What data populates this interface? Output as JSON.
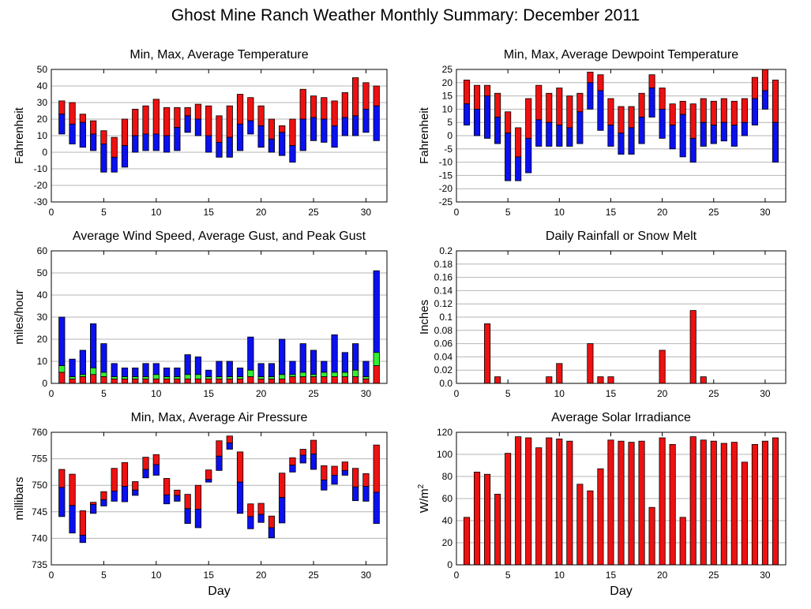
{
  "page": {
    "title": "Ghost Mine Ranch Weather Monthly Summary: December 2011"
  },
  "colors": {
    "red": "#ee1111",
    "blue": "#0a10ee",
    "green": "#33ee33",
    "grid": "#b4b4b4"
  },
  "chart_data": [
    {
      "id": "temp",
      "type": "bar",
      "style": "minmax-avg",
      "title": "Min, Max, Average Temperature",
      "xlabel": "",
      "ylabel": "Fahrenheit",
      "xlim": [
        0,
        32
      ],
      "xticks": [
        0,
        5,
        10,
        15,
        20,
        25,
        30
      ],
      "ylim": [
        -30,
        50
      ],
      "yticks": [
        -30,
        -20,
        -10,
        0,
        10,
        20,
        30,
        40,
        50
      ],
      "days": [
        1,
        2,
        3,
        4,
        5,
        6,
        7,
        8,
        9,
        10,
        11,
        12,
        13,
        14,
        15,
        16,
        17,
        18,
        19,
        20,
        21,
        22,
        23,
        24,
        25,
        26,
        27,
        28,
        29,
        30,
        31
      ],
      "min": [
        11,
        5,
        3,
        1,
        -12,
        -12,
        -9,
        0,
        1,
        1,
        0,
        1,
        12,
        10,
        0,
        -3,
        -3,
        1,
        11,
        3,
        0,
        -2,
        -6,
        1,
        7,
        6,
        3,
        10,
        10,
        12,
        7
      ],
      "avg": [
        23,
        17,
        18,
        11,
        5,
        -3,
        4,
        10,
        11,
        11,
        10,
        15,
        22,
        20,
        10,
        6,
        9,
        17,
        19,
        16,
        8,
        12,
        4,
        20,
        21,
        20,
        16,
        21,
        22,
        26,
        28
      ],
      "max": [
        31,
        30,
        23,
        19,
        13,
        9,
        20,
        26,
        28,
        32,
        27,
        27,
        27,
        29,
        28,
        22,
        28,
        35,
        33,
        28,
        20,
        16,
        20,
        38,
        34,
        33,
        31,
        36,
        45,
        42,
        40
      ]
    },
    {
      "id": "dewpoint",
      "type": "bar",
      "style": "minmax-avg",
      "title": "Min, Max, Average Dewpoint Temperature",
      "xlabel": "",
      "ylabel": "Fahrenheit",
      "xlim": [
        0,
        32
      ],
      "xticks": [
        0,
        5,
        10,
        15,
        20,
        25,
        30
      ],
      "ylim": [
        -25,
        25
      ],
      "yticks": [
        -25,
        -20,
        -15,
        -10,
        -5,
        0,
        5,
        10,
        15,
        20,
        25
      ],
      "days": [
        1,
        2,
        3,
        4,
        5,
        6,
        7,
        8,
        9,
        10,
        11,
        12,
        13,
        14,
        15,
        16,
        17,
        18,
        19,
        20,
        21,
        22,
        23,
        24,
        25,
        26,
        27,
        28,
        29,
        30,
        31
      ],
      "min": [
        4,
        0,
        -1,
        -3,
        -17,
        -17,
        -14,
        -4,
        -4,
        -4,
        -4,
        -3,
        10,
        2,
        -4,
        -7,
        -7,
        -3,
        7,
        -1,
        -5,
        -8,
        -10,
        -4,
        -3,
        -2,
        -4,
        0,
        4,
        10,
        -10
      ],
      "avg": [
        12,
        10,
        15,
        7,
        1,
        -8,
        -1,
        6,
        5,
        4,
        3,
        9,
        20,
        17,
        4,
        1,
        3,
        7,
        18,
        10,
        4,
        8,
        -1,
        5,
        4,
        5,
        4,
        5,
        14,
        17,
        5
      ],
      "max": [
        21,
        19,
        19,
        16,
        9,
        3,
        14,
        19,
        16,
        18,
        15,
        16,
        24,
        23,
        14,
        11,
        11,
        16,
        23,
        18,
        12,
        13,
        12,
        14,
        13,
        14,
        13,
        14,
        22,
        25,
        21
      ]
    },
    {
      "id": "wind",
      "type": "bar",
      "style": "wind",
      "title": "Average Wind Speed, Average Gust, and Peak Gust",
      "xlabel": "",
      "ylabel": "miles/hour",
      "xlim": [
        0,
        32
      ],
      "xticks": [
        0,
        5,
        10,
        15,
        20,
        25,
        30
      ],
      "ylim": [
        0,
        60
      ],
      "yticks": [
        0,
        10,
        20,
        30,
        40,
        50,
        60
      ],
      "days": [
        1,
        2,
        3,
        4,
        5,
        6,
        7,
        8,
        9,
        10,
        11,
        12,
        13,
        14,
        15,
        16,
        17,
        18,
        19,
        20,
        21,
        22,
        23,
        24,
        25,
        26,
        27,
        28,
        29,
        30,
        31
      ],
      "avg_speed": [
        5,
        2,
        3,
        4,
        3,
        2,
        2,
        2,
        2,
        2,
        2,
        2,
        2,
        2,
        2,
        2,
        2,
        2,
        3,
        2,
        2,
        2,
        3,
        3,
        3,
        3,
        3,
        3,
        3,
        2,
        8
      ],
      "avg_gust": [
        8,
        3,
        4,
        7,
        5,
        3,
        3,
        3,
        3,
        4,
        3,
        3,
        4,
        4,
        3,
        3,
        3,
        3,
        6,
        3,
        3,
        4,
        4,
        5,
        4,
        5,
        5,
        5,
        6,
        3,
        14
      ],
      "peak_gust": [
        30,
        11,
        15,
        27,
        18,
        9,
        7,
        7,
        9,
        9,
        7,
        7,
        13,
        12,
        6,
        10,
        10,
        7,
        21,
        9,
        9,
        20,
        10,
        18,
        15,
        10,
        22,
        14,
        18,
        10,
        51
      ]
    },
    {
      "id": "rain",
      "type": "bar",
      "style": "single",
      "title": "Daily Rainfall or Snow Melt",
      "xlabel": "",
      "ylabel": "Inches",
      "xlim": [
        0,
        32
      ],
      "xticks": [
        0,
        5,
        10,
        15,
        20,
        25,
        30
      ],
      "ylim": [
        0,
        0.2
      ],
      "yticks": [
        0,
        0.02,
        0.04,
        0.06,
        0.08,
        0.1,
        0.12,
        0.14,
        0.16,
        0.18,
        0.2
      ],
      "ytick_labels": [
        "0.0",
        "0.02",
        "0.04",
        "0.06",
        "0.08",
        "0.1",
        "0.12",
        "0.14",
        "0.16",
        "0.18",
        "0.2"
      ],
      "days": [
        3,
        4,
        9,
        10,
        13,
        14,
        15,
        20,
        23,
        24
      ],
      "values": [
        0.09,
        0.01,
        0.01,
        0.03,
        0.06,
        0.01,
        0.01,
        0.05,
        0.11,
        0.01
      ]
    },
    {
      "id": "pressure",
      "type": "bar",
      "style": "minmax-avg",
      "title": "Min, Max, Average Air Pressure",
      "xlabel": "Day",
      "ylabel": "millibars",
      "xlim": [
        0,
        32
      ],
      "xticks": [
        0,
        5,
        10,
        15,
        20,
        25,
        30
      ],
      "ylim": [
        735,
        760
      ],
      "yticks": [
        735,
        740,
        745,
        750,
        755,
        760
      ],
      "days": [
        1,
        2,
        3,
        4,
        5,
        6,
        7,
        8,
        9,
        10,
        11,
        12,
        13,
        14,
        15,
        16,
        17,
        18,
        19,
        20,
        21,
        22,
        23,
        24,
        25,
        26,
        27,
        28,
        29,
        30,
        31
      ],
      "min": [
        744.1,
        741,
        739.2,
        744.7,
        746.1,
        747,
        746.9,
        748.1,
        751.4,
        751.9,
        746.5,
        747,
        742.8,
        742,
        750.6,
        752.8,
        756.8,
        744.7,
        741.8,
        743,
        740.1,
        742.9,
        752.5,
        754.2,
        753,
        749.1,
        750.2,
        751.9,
        747.1,
        747,
        742.8
      ],
      "avg": [
        749.6,
        746.2,
        740.6,
        746.4,
        747.3,
        748.9,
        749.8,
        749.1,
        753,
        753.9,
        748.2,
        748.1,
        745.6,
        745.5,
        751.1,
        755.5,
        758,
        750.6,
        744.1,
        744.5,
        742,
        747.7,
        753.8,
        755.7,
        755.9,
        751,
        751.9,
        752.8,
        749.7,
        749.8,
        748.7
      ],
      "max": [
        753,
        752.1,
        745.2,
        746.8,
        748.8,
        753.2,
        754.3,
        750.7,
        755.3,
        755.8,
        751.3,
        749.1,
        748.3,
        750,
        752.9,
        758.4,
        759.3,
        756.3,
        746.5,
        746.6,
        744.2,
        752.3,
        755.2,
        756.8,
        758.5,
        753.7,
        753.6,
        754.4,
        753.2,
        752.2,
        757.6
      ]
    },
    {
      "id": "solar",
      "type": "bar",
      "style": "single",
      "title": "Average Solar Irradiance",
      "xlabel": "Day",
      "ylabel": "W/m",
      "ylabel_sup": "2",
      "xlim": [
        0,
        32
      ],
      "xticks": [
        0,
        5,
        10,
        15,
        20,
        25,
        30
      ],
      "ylim": [
        0,
        120
      ],
      "yticks": [
        0,
        20,
        40,
        60,
        80,
        100,
        120
      ],
      "days": [
        1,
        2,
        3,
        4,
        5,
        6,
        7,
        8,
        9,
        10,
        11,
        12,
        13,
        14,
        15,
        16,
        17,
        18,
        19,
        20,
        21,
        22,
        23,
        24,
        25,
        26,
        27,
        28,
        29,
        30,
        31
      ],
      "values": [
        43,
        84,
        82,
        64,
        101,
        116,
        115,
        106,
        115,
        114,
        112,
        73,
        67,
        87,
        113,
        112,
        111,
        112,
        52,
        115,
        109,
        43,
        116,
        113,
        112,
        110,
        111,
        93,
        109,
        112,
        115
      ]
    }
  ]
}
